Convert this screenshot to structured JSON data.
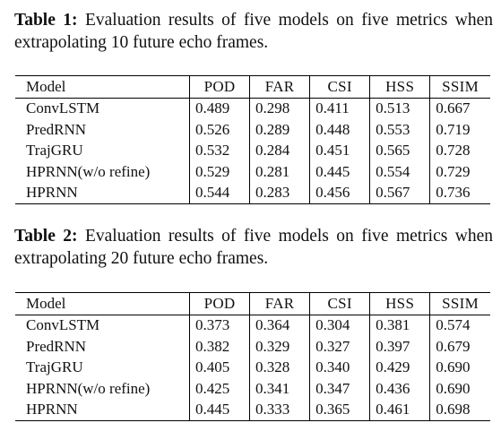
{
  "table1": {
    "label": "Table 1:",
    "caption": "Evaluation results of five models on five metrics when extrapolating 10 future echo frames.",
    "columns": [
      "Model",
      "POD",
      "FAR",
      "CSI",
      "HSS",
      "SSIM"
    ],
    "rows": [
      {
        "model": "ConvLSTM",
        "values": [
          "0.489",
          "0.298",
          "0.411",
          "0.513",
          "0.667"
        ],
        "bold": [
          false,
          false,
          false,
          false,
          false
        ]
      },
      {
        "model": "PredRNN",
        "values": [
          "0.526",
          "0.289",
          "0.448",
          "0.553",
          "0.719"
        ],
        "bold": [
          false,
          false,
          false,
          false,
          false
        ]
      },
      {
        "model": "TrajGRU",
        "values": [
          "0.532",
          "0.284",
          "0.451",
          "0.565",
          "0.728"
        ],
        "bold": [
          false,
          false,
          false,
          false,
          false
        ]
      },
      {
        "model": "HPRNN(w/o refine)",
        "values": [
          "0.529",
          "0.281",
          "0.445",
          "0.554",
          "0.729"
        ],
        "bold": [
          false,
          true,
          false,
          false,
          false
        ]
      },
      {
        "model": "HPRNN",
        "values": [
          "0.544",
          "0.283",
          "0.456",
          "0.567",
          "0.736"
        ],
        "bold": [
          true,
          false,
          true,
          true,
          true
        ]
      }
    ]
  },
  "table2": {
    "label": "Table 2:",
    "caption": "Evaluation results of five models on five metrics when extrapolating 20 future echo frames.",
    "columns": [
      "Model",
      "POD",
      "FAR",
      "CSI",
      "HSS",
      "SSIM"
    ],
    "rows": [
      {
        "model": "ConvLSTM",
        "values": [
          "0.373",
          "0.364",
          "0.304",
          "0.381",
          "0.574"
        ],
        "bold": [
          false,
          false,
          false,
          false,
          false
        ]
      },
      {
        "model": "PredRNN",
        "values": [
          "0.382",
          "0.329",
          "0.327",
          "0.397",
          "0.679"
        ],
        "bold": [
          false,
          false,
          false,
          false,
          false
        ]
      },
      {
        "model": "TrajGRU",
        "values": [
          "0.405",
          "0.328",
          "0.340",
          "0.429",
          "0.690"
        ],
        "bold": [
          false,
          true,
          false,
          false,
          false
        ]
      },
      {
        "model": "HPRNN(w/o refine)",
        "values": [
          "0.425",
          "0.341",
          "0.347",
          "0.436",
          "0.690"
        ],
        "bold": [
          false,
          false,
          false,
          false,
          false
        ]
      },
      {
        "model": "HPRNN",
        "values": [
          "0.445",
          "0.333",
          "0.365",
          "0.461",
          "0.698"
        ],
        "bold": [
          true,
          false,
          true,
          true,
          true
        ]
      }
    ]
  }
}
